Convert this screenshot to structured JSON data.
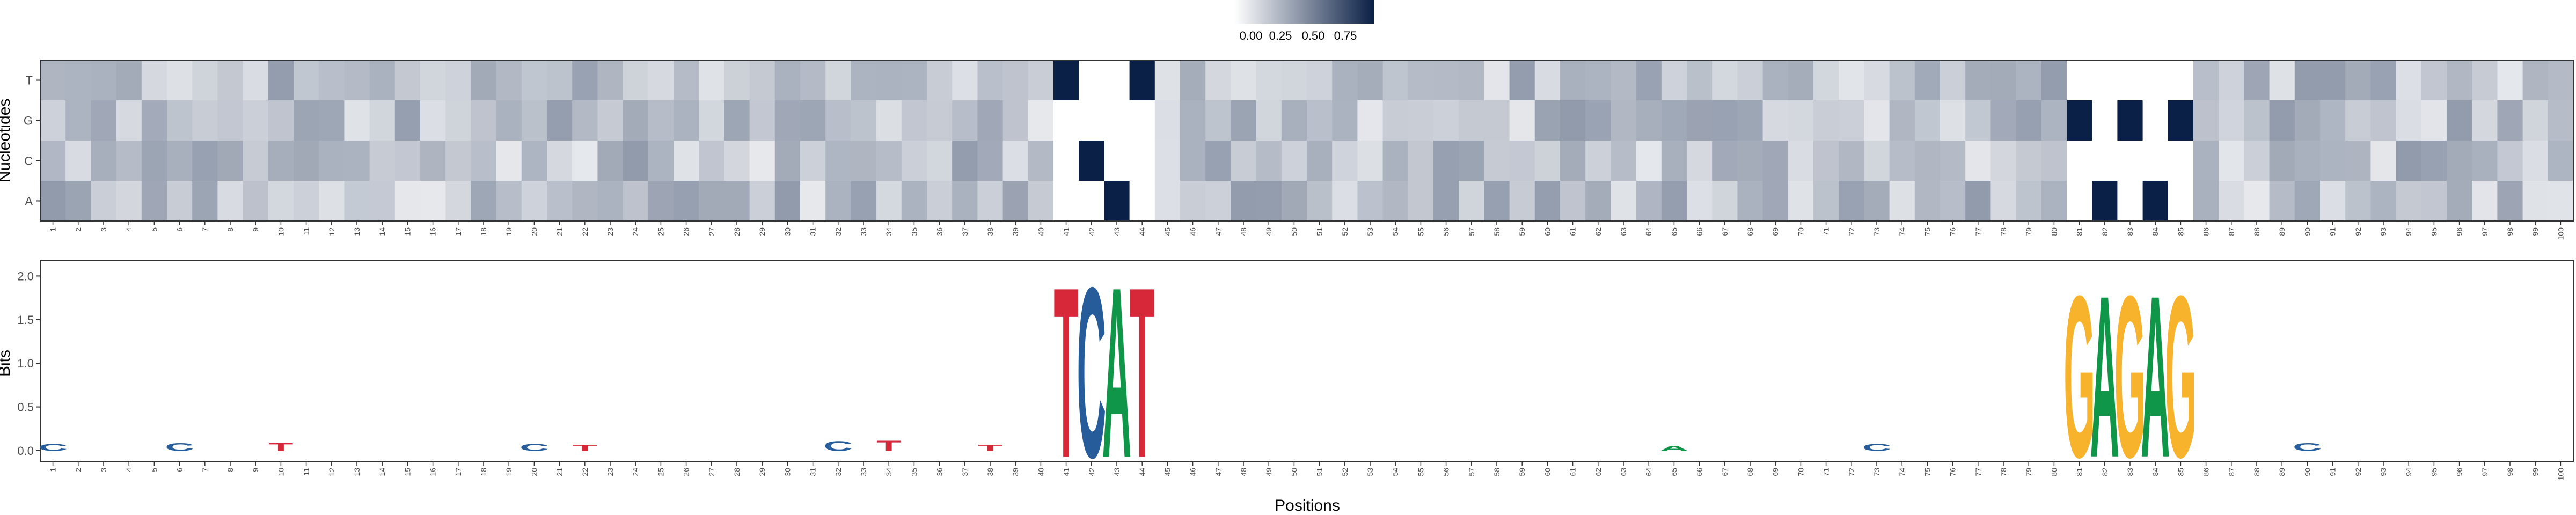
{
  "legend": {
    "ticks": [
      "0.00",
      "0.25",
      "0.50",
      "0.75"
    ],
    "gradient_low": "#ffffff",
    "gradient_high": "#0b2046"
  },
  "nucleotides_rows": [
    "T",
    "G",
    "C",
    "A"
  ],
  "colors": {
    "A": "#109648",
    "C": "#255c99",
    "G": "#f7b32b",
    "T": "#d62839",
    "panel_border": "#333333",
    "tick": "#4d4d4d"
  },
  "chart_data": [
    {
      "type": "heatmap",
      "ylabel": "Nucleotides",
      "y_categories": [
        "T",
        "G",
        "C",
        "A"
      ],
      "x_categories": [
        "1",
        "2",
        "3",
        "4",
        "5",
        "6",
        "7",
        "8",
        "9",
        "10",
        "11",
        "12",
        "13",
        "14",
        "15",
        "16",
        "17",
        "18",
        "19",
        "20",
        "21",
        "22",
        "23",
        "24",
        "25",
        "26",
        "27",
        "28",
        "29",
        "30",
        "31",
        "32",
        "33",
        "34",
        "35",
        "36",
        "37",
        "38",
        "39",
        "40",
        "41",
        "42",
        "43",
        "44",
        "45",
        "46",
        "47",
        "48",
        "49",
        "50",
        "51",
        "52",
        "53",
        "54",
        "55",
        "56",
        "57",
        "58",
        "59",
        "60",
        "61",
        "62",
        "63",
        "64",
        "65",
        "66",
        "67",
        "68",
        "69",
        "70",
        "71",
        "72",
        "73",
        "74",
        "75",
        "76",
        "77",
        "78",
        "79",
        "80",
        "81",
        "82",
        "83",
        "84",
        "85",
        "86",
        "87",
        "88",
        "89",
        "90",
        "91",
        "92",
        "93",
        "94",
        "95",
        "96",
        "97",
        "98",
        "99",
        "100"
      ],
      "value_range": [
        0,
        1
      ],
      "fixed": {
        "41": {
          "T": 1,
          "G": 0,
          "C": 0,
          "A": 0
        },
        "42": {
          "T": 0,
          "G": 0,
          "C": 1,
          "A": 0
        },
        "43": {
          "T": 0,
          "G": 0,
          "C": 0,
          "A": 1
        },
        "44": {
          "T": 1,
          "G": 0,
          "C": 0,
          "A": 0
        },
        "81": {
          "T": 0,
          "G": 1,
          "C": 0,
          "A": 0
        },
        "82": {
          "T": 0,
          "G": 0,
          "C": 0,
          "A": 1
        },
        "83": {
          "T": 0,
          "G": 1,
          "C": 0,
          "A": 0
        },
        "84": {
          "T": 0,
          "G": 0,
          "C": 0,
          "A": 1
        },
        "85": {
          "T": 0,
          "G": 1,
          "C": 0,
          "A": 0
        }
      },
      "background_range": [
        0.1,
        0.45
      ]
    },
    {
      "type": "bar",
      "title": "",
      "xlabel": "Positions",
      "ylabel": "Bits",
      "ylim": [
        0,
        2.15
      ],
      "yticks": [
        "0.0",
        "0.5",
        "1.0",
        "1.5",
        "2.0"
      ],
      "motifs": [
        {
          "position": 41,
          "letter": "T",
          "bits": 1.95
        },
        {
          "position": 42,
          "letter": "C",
          "bits": 1.95
        },
        {
          "position": 43,
          "letter": "A",
          "bits": 1.95
        },
        {
          "position": 44,
          "letter": "T",
          "bits": 1.95
        },
        {
          "position": 81,
          "letter": "G",
          "bits": 1.85
        },
        {
          "position": 82,
          "letter": "A",
          "bits": 1.85
        },
        {
          "position": 83,
          "letter": "G",
          "bits": 1.85
        },
        {
          "position": 84,
          "letter": "A",
          "bits": 1.85
        },
        {
          "position": 85,
          "letter": "G",
          "bits": 1.85
        }
      ],
      "small_peaks": [
        {
          "position": 1,
          "letter": "C",
          "bits": 0.08
        },
        {
          "position": 6,
          "letter": "C",
          "bits": 0.09
        },
        {
          "position": 10,
          "letter": "T",
          "bits": 0.09
        },
        {
          "position": 20,
          "letter": "C",
          "bits": 0.08
        },
        {
          "position": 22,
          "letter": "T",
          "bits": 0.07
        },
        {
          "position": 32,
          "letter": "C",
          "bits": 0.11
        },
        {
          "position": 34,
          "letter": "T",
          "bits": 0.12
        },
        {
          "position": 38,
          "letter": "T",
          "bits": 0.07
        },
        {
          "position": 65,
          "letter": "A",
          "bits": 0.06
        },
        {
          "position": 73,
          "letter": "C",
          "bits": 0.08
        },
        {
          "position": 90,
          "letter": "C",
          "bits": 0.09
        }
      ]
    }
  ]
}
